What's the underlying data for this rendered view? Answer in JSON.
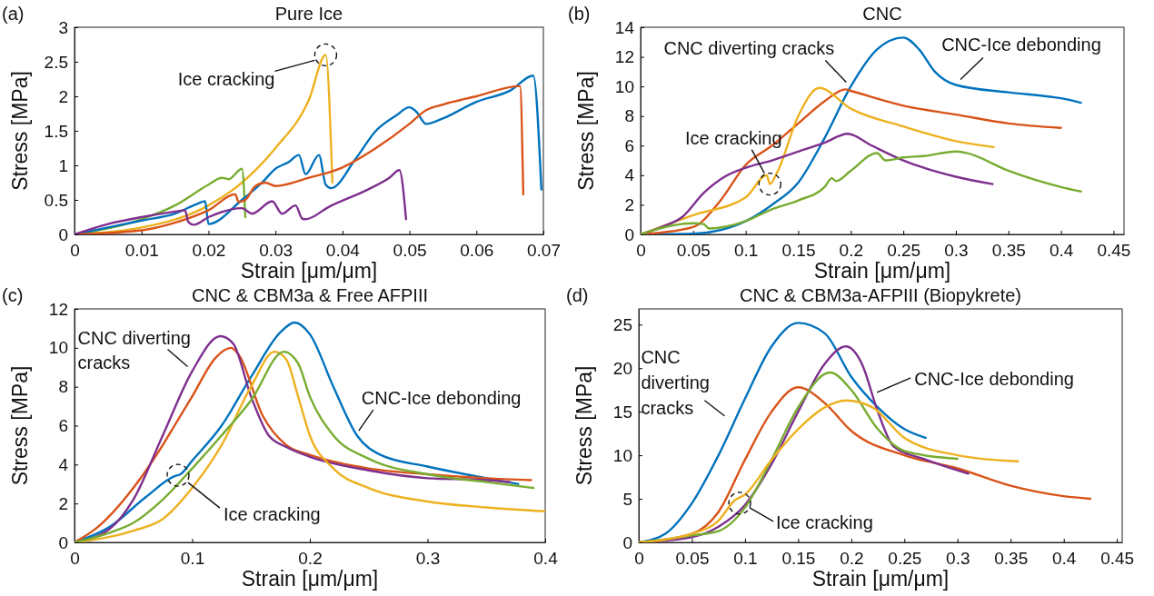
{
  "chart_data": [
    {
      "type": "line",
      "title": "Pure Ice",
      "xlabel": "Strain [μm/μm]",
      "ylabel": "Stress [MPa]",
      "xlim": [
        0,
        0.07
      ],
      "xticks": [
        0,
        0.01,
        0.02,
        0.03,
        0.04,
        0.05,
        0.06,
        0.07
      ],
      "ylim": [
        0,
        3
      ],
      "yticks": [
        0,
        0.5,
        1,
        1.5,
        2,
        2.5,
        3
      ],
      "annotations": [
        "(a)",
        {
          "text": "Ice cracking",
          "x": 0.0375,
          "y": 2.6
        }
      ],
      "series": [
        {
          "color": "#edb120",
          "x": [
            0,
            0.01,
            0.02,
            0.025,
            0.03,
            0.035,
            0.0375,
            0.0385
          ],
          "values": [
            0,
            0.1,
            0.42,
            0.75,
            1.25,
            1.95,
            2.6,
            0.75
          ]
        },
        {
          "color": "#77ac30",
          "x": [
            0,
            0.01,
            0.015,
            0.02,
            0.022,
            0.023,
            0.025,
            0.0255
          ],
          "values": [
            0,
            0.22,
            0.42,
            0.72,
            0.82,
            0.8,
            0.95,
            0.25
          ]
        },
        {
          "color": "#0072bd",
          "x": [
            0,
            0.01,
            0.015,
            0.0185,
            0.0195,
            0.02,
            0.025,
            0.028,
            0.03,
            0.032,
            0.0335,
            0.0345,
            0.0365,
            0.0375,
            0.0383,
            0.042,
            0.045,
            0.048,
            0.05,
            0.051,
            0.0525,
            0.055,
            0.06,
            0.065,
            0.0685,
            0.0697
          ],
          "values": [
            0,
            0.2,
            0.3,
            0.45,
            0.48,
            0.15,
            0.5,
            0.75,
            0.95,
            1.05,
            1.15,
            0.87,
            1.15,
            0.72,
            0.67,
            1.1,
            1.5,
            1.72,
            1.84,
            1.78,
            1.6,
            1.68,
            1.92,
            2.08,
            2.3,
            0.65
          ]
        },
        {
          "color": "#d95319",
          "x": [
            0,
            0.01,
            0.015,
            0.02,
            0.024,
            0.0245,
            0.0255,
            0.027,
            0.0285,
            0.03,
            0.035,
            0.04,
            0.045,
            0.05,
            0.0525,
            0.055,
            0.06,
            0.0665,
            0.067
          ],
          "values": [
            0,
            0.06,
            0.17,
            0.35,
            0.58,
            0.47,
            0.5,
            0.7,
            0.75,
            0.7,
            0.82,
            0.97,
            1.25,
            1.6,
            1.8,
            1.88,
            2.0,
            2.15,
            0.58
          ]
        },
        {
          "color": "#7e2f8e",
          "x": [
            0,
            0.005,
            0.01,
            0.015,
            0.0165,
            0.017,
            0.0178,
            0.02,
            0.025,
            0.0265,
            0.0295,
            0.031,
            0.033,
            0.034,
            0.0345,
            0.038,
            0.044,
            0.047,
            0.0485,
            0.0495
          ],
          "values": [
            0,
            0.15,
            0.25,
            0.33,
            0.35,
            0.18,
            0.14,
            0.25,
            0.38,
            0.3,
            0.48,
            0.3,
            0.42,
            0.23,
            0.22,
            0.4,
            0.66,
            0.82,
            0.93,
            0.22
          ]
        }
      ]
    },
    {
      "type": "line",
      "title": "CNC",
      "xlabel": "Strain [μm/μm]",
      "ylabel": "Stress [MPa]",
      "xlim": [
        0,
        0.46
      ],
      "xticks": [
        0,
        0.05,
        0.1,
        0.15,
        0.2,
        0.25,
        0.3,
        0.35,
        0.4,
        0.45
      ],
      "ylim": [
        0,
        14
      ],
      "yticks": [
        0,
        2,
        4,
        6,
        8,
        10,
        12,
        14
      ],
      "annotations": [
        "(b)",
        {
          "text": "CNC diverting cracks",
          "x": 0.2,
          "y": 9.8
        },
        {
          "text": "CNC-Ice debonding",
          "x": 0.3,
          "y": 10.1
        },
        {
          "text": "Ice cracking",
          "x": 0.123,
          "y": 3.4
        }
      ],
      "series": [
        {
          "color": "#0072bd",
          "x": [
            0,
            0.05,
            0.1,
            0.125,
            0.15,
            0.175,
            0.2,
            0.225,
            0.25,
            0.265,
            0.28,
            0.3,
            0.35,
            0.39,
            0.4,
            0.419
          ],
          "values": [
            0,
            0.05,
            0.9,
            2,
            3.5,
            6.5,
            10,
            12.5,
            13.3,
            12.5,
            11,
            10.1,
            9.6,
            9.3,
            9.2,
            8.9
          ]
        },
        {
          "color": "#d95319",
          "x": [
            0,
            0.05,
            0.075,
            0.1,
            0.125,
            0.15,
            0.175,
            0.195,
            0.2,
            0.25,
            0.3,
            0.35,
            0.4
          ],
          "values": [
            0,
            0.5,
            2.2,
            4.7,
            6,
            7.5,
            9,
            9.8,
            9.7,
            8.7,
            8.1,
            7.5,
            7.2
          ]
        },
        {
          "color": "#edb120",
          "x": [
            0,
            0.05,
            0.1,
            0.12,
            0.123,
            0.13,
            0.15,
            0.17,
            0.2,
            0.25,
            0.3,
            0.336
          ],
          "values": [
            0,
            1.3,
            2.5,
            4,
            3.4,
            4.2,
            8,
            9.9,
            8.5,
            7.3,
            6.3,
            5.9
          ]
        },
        {
          "color": "#7e2f8e",
          "x": [
            0,
            0.02,
            0.04,
            0.06,
            0.08,
            0.1,
            0.125,
            0.15,
            0.175,
            0.197,
            0.22,
            0.25,
            0.3,
            0.335
          ],
          "values": [
            0,
            0.5,
            1.2,
            2.8,
            3.9,
            4.5,
            5,
            5.6,
            6.2,
            6.8,
            6,
            5,
            3.9,
            3.4
          ]
        },
        {
          "color": "#77ac30",
          "x": [
            0,
            0.03,
            0.05,
            0.06,
            0.065,
            0.1,
            0.125,
            0.15,
            0.175,
            0.182,
            0.186,
            0.2,
            0.225,
            0.233,
            0.25,
            0.27,
            0.3,
            0.31,
            0.35,
            0.4,
            0.419
          ],
          "values": [
            0,
            0.6,
            0.75,
            0.7,
            0.4,
            0.9,
            1.7,
            2.3,
            3.2,
            3.8,
            3.6,
            4.3,
            5.5,
            5,
            5.2,
            5.3,
            5.6,
            5.5,
            4.3,
            3.2,
            2.9
          ]
        }
      ]
    },
    {
      "type": "line",
      "title": "CNC & CBM3a & Free AFPIII",
      "xlabel": "Strain [μm/μm]",
      "ylabel": "Stress [MPa]",
      "xlim": [
        0,
        0.4
      ],
      "xticks": [
        0,
        0.1,
        0.2,
        0.3,
        0.4
      ],
      "ylim": [
        0,
        12
      ],
      "yticks": [
        0,
        2,
        4,
        6,
        8,
        10,
        12
      ],
      "annotations": [
        "(c)",
        {
          "text": "CNC diverting cracks",
          "x": 0.1,
          "y": 8.8
        },
        {
          "text": "CNC-Ice debonding",
          "x": 0.24,
          "y": 5.5
        },
        {
          "text": "Ice cracking",
          "x": 0.088,
          "y": 3.45
        }
      ],
      "series": [
        {
          "color": "#0072bd",
          "x": [
            0,
            0.03,
            0.06,
            0.085,
            0.09,
            0.1,
            0.125,
            0.15,
            0.175,
            0.187,
            0.2,
            0.22,
            0.24,
            0.26,
            0.3,
            0.35,
            0.377
          ],
          "values": [
            0,
            0.8,
            2.3,
            3.4,
            3.5,
            4.2,
            6,
            8.5,
            10.8,
            11.3,
            10.7,
            8,
            5.5,
            4.5,
            3.9,
            3.3,
            3.0
          ]
        },
        {
          "color": "#d95319",
          "x": [
            0,
            0.02,
            0.05,
            0.075,
            0.085,
            0.1,
            0.12,
            0.133,
            0.14,
            0.16,
            0.18,
            0.2,
            0.25,
            0.3,
            0.35,
            0.388
          ],
          "values": [
            0,
            0.8,
            2.8,
            5.0,
            6,
            7.5,
            9.5,
            10,
            9.6,
            6.5,
            5,
            4.5,
            3.8,
            3.5,
            3.3,
            3.2
          ]
        },
        {
          "color": "#7e2f8e",
          "x": [
            0,
            0.03,
            0.05,
            0.075,
            0.1,
            0.124,
            0.135,
            0.15,
            0.165,
            0.18,
            0.2,
            0.25,
            0.3,
            0.35,
            0.37
          ],
          "values": [
            0,
            0.7,
            2.2,
            5.5,
            8.8,
            10.6,
            10.2,
            7.5,
            5.5,
            4.9,
            4.4,
            3.7,
            3.3,
            3.2,
            3.1
          ]
        },
        {
          "color": "#edb120",
          "x": [
            0,
            0.05,
            0.075,
            0.1,
            0.125,
            0.15,
            0.17,
            0.18,
            0.19,
            0.2,
            0.22,
            0.25,
            0.3,
            0.35,
            0.4
          ],
          "values": [
            0,
            0.6,
            1.2,
            2.8,
            5,
            8,
            9.8,
            9.4,
            7.5,
            5.5,
            3.8,
            2.8,
            2.1,
            1.8,
            1.6
          ]
        },
        {
          "color": "#77ac30",
          "x": [
            0,
            0.03,
            0.05,
            0.075,
            0.1,
            0.125,
            0.15,
            0.178,
            0.19,
            0.2,
            0.22,
            0.25,
            0.3,
            0.35,
            0.39
          ],
          "values": [
            0,
            0.5,
            1,
            2.2,
            3.8,
            5.5,
            7.3,
            9.8,
            9.2,
            7.5,
            5.5,
            4.3,
            3.5,
            3.1,
            2.8
          ]
        }
      ]
    },
    {
      "type": "line",
      "title": "CNC & CBM3a-AFPIII (Biopykrete)",
      "xlabel": "Strain [μm/μm]",
      "ylabel": "Stress [MPa]",
      "xlim": [
        0,
        0.455
      ],
      "xticks": [
        0,
        0.05,
        0.1,
        0.15,
        0.2,
        0.25,
        0.3,
        0.35,
        0.4,
        0.45
      ],
      "ylim": [
        0,
        26.8
      ],
      "yticks": [
        0,
        5,
        10,
        15,
        20,
        25
      ],
      "annotations": [
        "(d)",
        {
          "text": "CNC diverting cracks",
          "x": 0.085,
          "y": 14
        },
        {
          "text": "CNC-Ice debonding",
          "x": 0.22,
          "y": 17
        },
        {
          "text": "Ice cracking",
          "x": 0.095,
          "y": 4.5
        }
      ],
      "series": [
        {
          "color": "#0072bd",
          "x": [
            0,
            0.025,
            0.05,
            0.075,
            0.1,
            0.125,
            0.15,
            0.175,
            0.2,
            0.225,
            0.25,
            0.27
          ],
          "values": [
            0,
            1,
            4.5,
            10,
            16.5,
            22.5,
            25.2,
            24,
            19,
            15.5,
            13,
            12
          ]
        },
        {
          "color": "#d95319",
          "x": [
            0,
            0.05,
            0.075,
            0.1,
            0.125,
            0.15,
            0.175,
            0.2,
            0.25,
            0.3,
            0.35,
            0.4,
            0.425
          ],
          "values": [
            0,
            1,
            3.5,
            9.5,
            15,
            17.8,
            16,
            12.8,
            10,
            8.5,
            6.5,
            5.3,
            5.0
          ]
        },
        {
          "color": "#7e2f8e",
          "x": [
            0,
            0.05,
            0.075,
            0.1,
            0.125,
            0.15,
            0.175,
            0.195,
            0.21,
            0.225,
            0.24,
            0.27,
            0.31
          ],
          "values": [
            0,
            0.6,
            1.8,
            4.3,
            9,
            15,
            20.5,
            22.5,
            20.5,
            15,
            11,
            9.5,
            7.9
          ]
        },
        {
          "color": "#77ac30",
          "x": [
            0,
            0.05,
            0.075,
            0.1,
            0.125,
            0.15,
            0.18,
            0.2,
            0.225,
            0.25,
            0.3
          ],
          "values": [
            0,
            0.8,
            1.3,
            4,
            9.5,
            15.5,
            19.5,
            17.5,
            13,
            10.5,
            9.6
          ]
        },
        {
          "color": "#edb120",
          "x": [
            0,
            0.05,
            0.075,
            0.09,
            0.1,
            0.125,
            0.15,
            0.175,
            0.195,
            0.22,
            0.25,
            0.3,
            0.357
          ],
          "values": [
            0,
            1,
            2.5,
            4.8,
            5.5,
            9.5,
            13,
            15.5,
            16.3,
            15.5,
            12,
            10,
            9.3
          ]
        }
      ]
    }
  ]
}
